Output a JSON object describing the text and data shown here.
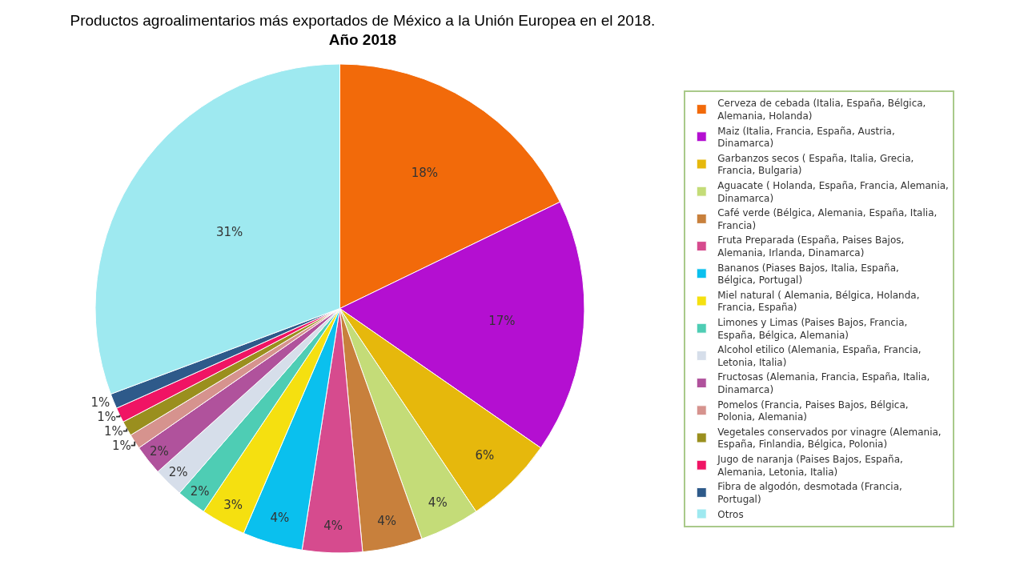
{
  "chart_data": {
    "type": "pie",
    "title": "Productos agroalimentarios más exportados de México a la Unión Europea en el 2018.",
    "subtitle": "Año 2018",
    "categories": [
      "Cerveza de cebada (Italia, España, Bélgica, Alemania, Holanda)",
      "Maiz (Italia, Francia, España, Austria, Dinamarca)",
      "Garbanzos secos ( España, Italia, Grecia, Francia, Bulgaria)",
      "Aguacate ( Holanda, España, Francia, Alemania, Dinamarca)",
      "Café verde (Bélgica, Alemania, España, Italia, Francia)",
      "Fruta Preparada (España, Paises Bajos, Alemania, Irlanda, Dinamarca)",
      "Bananos (Piases Bajos, Italia, España, Bélgica, Portugal)",
      "Miel natural ( Alemania, Bélgica, Holanda, Francia, España)",
      "Limones y Limas (Paises Bajos, Francia, España, Bélgica, Alemania)",
      "Alcohol etilico (Alemania, España, Francia, Letonia, Italia)",
      "Fructosas (Alemania, Francia, España, Italia, Dinamarca)",
      "Pomelos (Francia, Paises Bajos, Bélgica, Polonia, Alemania)",
      "Vegetales conservados por vinagre (Alemania, España, Finlandia, Bélgica, Polonia)",
      "Jugo de naranja (Paises Bajos, España, Alemania, Letonia, Italia)",
      "Fibra de algodón, desmotada (Francia, Portugal)",
      "Otros"
    ],
    "values": [
      18,
      17,
      6,
      4,
      4,
      4,
      4,
      3,
      2,
      2,
      2,
      1,
      1,
      1,
      1,
      31
    ],
    "colors": [
      "#f26a0a",
      "#b40fd1",
      "#e6b80c",
      "#c4dc78",
      "#c8803c",
      "#d64b8e",
      "#0ac0ee",
      "#f5e010",
      "#4ecdb4",
      "#d6deea",
      "#b0529c",
      "#d6938e",
      "#9a8f1e",
      "#f01464",
      "#2e5a8a",
      "#9ee9f0"
    ],
    "value_labels": [
      "18%",
      "17%",
      "6%",
      "4%",
      "4%",
      "4%",
      "4%",
      "3%",
      "2%",
      "2%",
      "2%",
      "1%",
      "1%",
      "1%",
      "1%",
      "31%"
    ],
    "legend": "right"
  }
}
